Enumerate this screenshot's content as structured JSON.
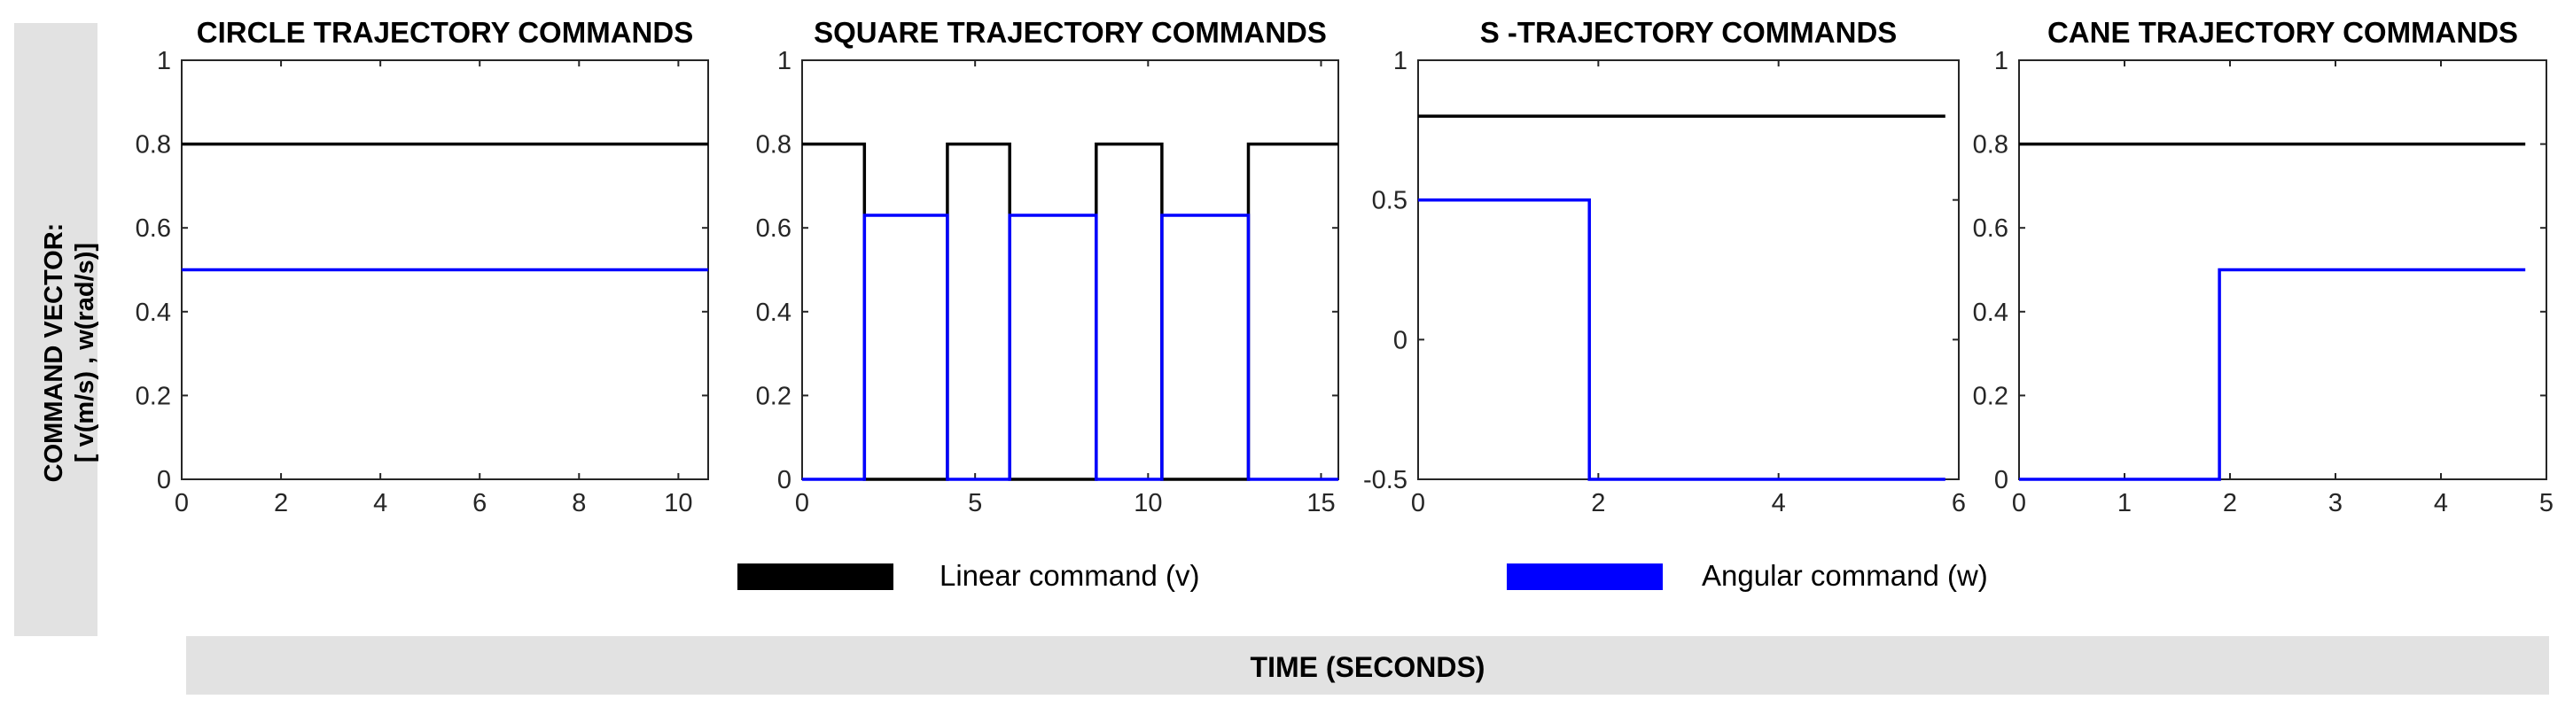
{
  "figure": {
    "y_label_line1": "COMMAND VECTOR:",
    "y_label_line2": "[ v(m/s) , w(rad/s)]",
    "x_label": "TIME (SECONDS)"
  },
  "legend": [
    {
      "name": "Linear command (v)",
      "color": "#000000"
    },
    {
      "name": "Angular command (w)",
      "color": "#0000ff"
    }
  ],
  "chart_data": [
    {
      "type": "line",
      "title": "CIRCLE TRAJECTORY COMMANDS",
      "xlim": [
        0,
        10.6
      ],
      "ylim": [
        0,
        1
      ],
      "xticks": [
        0,
        2,
        4,
        6,
        8,
        10
      ],
      "yticks": [
        0,
        0.2,
        0.4,
        0.6,
        0.8,
        1
      ],
      "ytick_labels": [
        "0",
        "0.2",
        "0.4",
        "0.6",
        "0.8",
        "1"
      ],
      "series": [
        {
          "name": "Linear command (v)",
          "color": "#000000",
          "x": [
            0,
            10.6
          ],
          "y": [
            0.8,
            0.8
          ]
        },
        {
          "name": "Angular command (w)",
          "color": "#0000ff",
          "x": [
            0,
            10.6
          ],
          "y": [
            0.5,
            0.5
          ]
        }
      ]
    },
    {
      "type": "line",
      "title": "SQUARE TRAJECTORY COMMANDS",
      "xlim": [
        0,
        15.5
      ],
      "ylim": [
        0,
        1
      ],
      "xticks": [
        0,
        5,
        10,
        15
      ],
      "yticks": [
        0,
        0.2,
        0.4,
        0.6,
        0.8,
        1
      ],
      "ytick_labels": [
        "0",
        "0.2",
        "0.4",
        "0.6",
        "0.8",
        "1"
      ],
      "series": [
        {
          "name": "Linear command (v)",
          "color": "#000000",
          "x": [
            0,
            1.8,
            1.8,
            4.2,
            4.2,
            6.0,
            6.0,
            8.5,
            8.5,
            10.4,
            10.4,
            12.9,
            12.9,
            15.5
          ],
          "y": [
            0.8,
            0.8,
            0,
            0,
            0.8,
            0.8,
            0,
            0,
            0.8,
            0.8,
            0,
            0,
            0.8,
            0.8
          ]
        },
        {
          "name": "Angular command (w)",
          "color": "#0000ff",
          "x": [
            0,
            1.8,
            1.8,
            4.2,
            4.2,
            6.0,
            6.0,
            8.5,
            8.5,
            10.4,
            10.4,
            12.9,
            12.9,
            15.5
          ],
          "y": [
            0,
            0,
            0.63,
            0.63,
            0,
            0,
            0.63,
            0.63,
            0,
            0,
            0.63,
            0.63,
            0,
            0
          ]
        }
      ]
    },
    {
      "type": "line",
      "title": "S -TRAJECTORY COMMANDS",
      "xlim": [
        0,
        6
      ],
      "ylim": [
        -0.5,
        1
      ],
      "xticks": [
        0,
        2,
        4,
        6
      ],
      "yticks": [
        -0.5,
        0,
        0.5,
        1
      ],
      "ytick_labels": [
        "-0.5",
        "0",
        "0.5",
        "1"
      ],
      "series": [
        {
          "name": "Linear command (v)",
          "color": "#000000",
          "x": [
            0,
            5.85
          ],
          "y": [
            0.8,
            0.8
          ]
        },
        {
          "name": "Angular command (w)",
          "color": "#0000ff",
          "x": [
            0,
            1.9,
            1.9,
            5.85
          ],
          "y": [
            0.5,
            0.5,
            -0.5,
            -0.5
          ]
        }
      ]
    },
    {
      "type": "line",
      "title": "CANE TRAJECTORY COMMANDS",
      "xlim": [
        0,
        5
      ],
      "ylim": [
        0,
        1
      ],
      "xticks": [
        0,
        1,
        2,
        3,
        4,
        5
      ],
      "yticks": [
        0,
        0.2,
        0.4,
        0.6,
        0.8,
        1
      ],
      "ytick_labels": [
        "0",
        "0.2",
        "0.4",
        "0.6",
        "0.8",
        "1"
      ],
      "series": [
        {
          "name": "Linear command (v)",
          "color": "#000000",
          "x": [
            0,
            4.8
          ],
          "y": [
            0.8,
            0.8
          ]
        },
        {
          "name": "Angular command (w)",
          "color": "#0000ff",
          "x": [
            0,
            1.9,
            1.9,
            4.8
          ],
          "y": [
            0,
            0,
            0.5,
            0.5
          ]
        }
      ]
    }
  ]
}
